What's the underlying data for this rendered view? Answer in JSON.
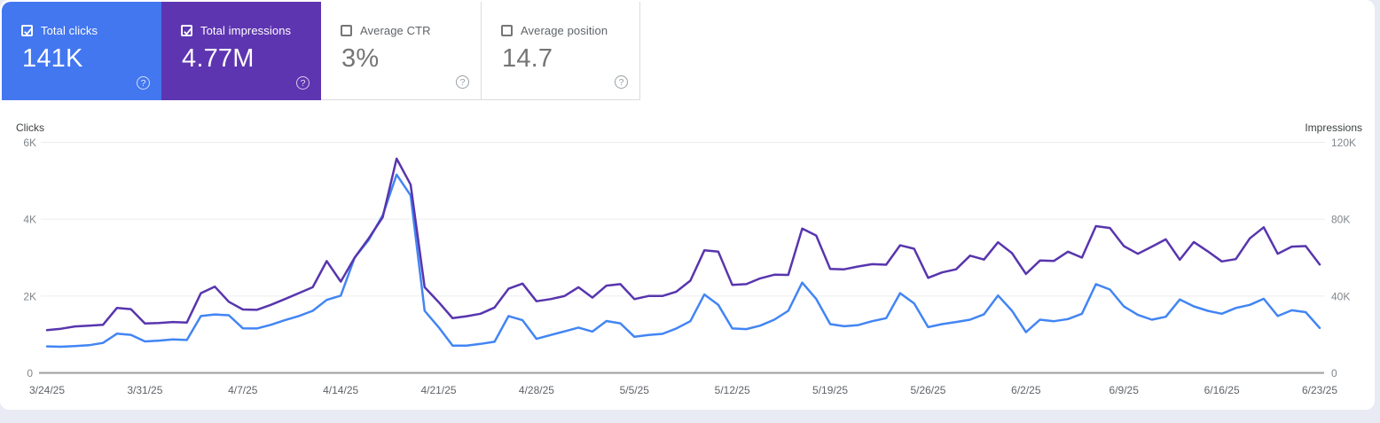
{
  "cards": [
    {
      "id": "total-clicks",
      "label": "Total clicks",
      "value": "141K",
      "checked": true,
      "style": "color",
      "bg": "#4377f0"
    },
    {
      "id": "total-impressions",
      "label": "Total impressions",
      "value": "4.77M",
      "checked": true,
      "style": "color",
      "bg": "#5e35b1"
    },
    {
      "id": "average-ctr",
      "label": "Average CTR",
      "value": "3%",
      "checked": false,
      "style": "white",
      "bg": "#ffffff"
    },
    {
      "id": "average-position",
      "label": "Average position",
      "value": "14.7",
      "checked": false,
      "style": "white",
      "bg": "#ffffff"
    }
  ],
  "chart": {
    "left_axis_title": "Clicks",
    "right_axis_title": "Impressions",
    "left_ticks": [
      {
        "label": "6K",
        "value": 6000
      },
      {
        "label": "4K",
        "value": 4000
      },
      {
        "label": "2K",
        "value": 2000
      },
      {
        "label": "0",
        "value": 0
      }
    ],
    "right_ticks": [
      {
        "label": "120K",
        "value": 120000
      },
      {
        "label": "80K",
        "value": 80000
      },
      {
        "label": "40K",
        "value": 40000
      },
      {
        "label": "0",
        "value": 0
      }
    ],
    "x_tick_labels": [
      "3/24/25",
      "3/31/25",
      "4/7/25",
      "4/14/25",
      "4/21/25",
      "4/28/25",
      "5/5/25",
      "5/12/25",
      "5/19/25",
      "5/26/25",
      "6/2/25",
      "6/9/25",
      "6/16/25",
      "6/23/25"
    ],
    "colors": {
      "clicks_line": "#4285f4",
      "impressions_line": "#5835ae",
      "gridline": "#ececec",
      "axis_line": "#9e9e9e",
      "tick_text": "#80868b",
      "date_text": "#5f6368"
    }
  },
  "chart_data": {
    "type": "line",
    "frequency": "daily",
    "x_range": [
      "3/24/25",
      "6/23/25"
    ],
    "x_tick_labels": [
      "3/24/25",
      "3/31/25",
      "4/7/25",
      "4/14/25",
      "4/21/25",
      "4/28/25",
      "5/5/25",
      "5/12/25",
      "5/19/25",
      "5/26/25",
      "6/2/25",
      "6/9/25",
      "6/16/25",
      "6/23/25"
    ],
    "left_ylim": [
      0,
      6000
    ],
    "right_ylim": [
      0,
      120000
    ],
    "legend": "none",
    "grid": "horizontal",
    "series": [
      {
        "name": "Clicks",
        "axis": "left",
        "color": "#4285f4",
        "values": [
          690,
          680,
          700,
          720,
          780,
          1020,
          990,
          820,
          840,
          870,
          855,
          1480,
          1520,
          1500,
          1160,
          1155,
          1250,
          1370,
          1480,
          1615,
          1900,
          2010,
          3000,
          3460,
          4100,
          5160,
          4620,
          1615,
          1190,
          710,
          710,
          755,
          810,
          1480,
          1370,
          885,
          985,
          1080,
          1180,
          1075,
          1350,
          1290,
          940,
          985,
          1015,
          1155,
          1345,
          2040,
          1770,
          1155,
          1140,
          1230,
          1385,
          1615,
          2350,
          1925,
          1270,
          1215,
          1245,
          1345,
          1425,
          2075,
          1810,
          1190,
          1270,
          1325,
          1385,
          1525,
          2015,
          1615,
          1060,
          1385,
          1345,
          1400,
          1540,
          2310,
          2170,
          1730,
          1510,
          1385,
          1460,
          1910,
          1730,
          1615,
          1540,
          1690,
          1770,
          1930,
          1480,
          1630,
          1580,
          1170
        ]
      },
      {
        "name": "Impressions",
        "axis": "right",
        "color": "#5835ae",
        "values": [
          22300,
          23000,
          24200,
          24600,
          25000,
          33800,
          33200,
          25700,
          26000,
          26500,
          26200,
          41500,
          44900,
          37000,
          33000,
          32800,
          35400,
          38400,
          41500,
          44600,
          58200,
          47500,
          60000,
          70000,
          81000,
          111500,
          98000,
          44600,
          36900,
          28500,
          29500,
          30800,
          34000,
          43800,
          46500,
          37300,
          38400,
          40000,
          44600,
          39200,
          45400,
          46200,
          38400,
          40000,
          40000,
          42300,
          48000,
          63800,
          63100,
          45800,
          46200,
          49200,
          51100,
          51000,
          75100,
          71500,
          54100,
          53900,
          55400,
          56600,
          56300,
          66400,
          64600,
          49500,
          52300,
          53900,
          61000,
          59000,
          68000,
          62300,
          51500,
          58500,
          58300,
          63100,
          60000,
          76400,
          75400,
          66000,
          62000,
          65700,
          69500,
          58900,
          68100,
          63300,
          58000,
          59200,
          70000,
          75800,
          62000,
          65700,
          66000,
          56400
        ]
      }
    ]
  }
}
